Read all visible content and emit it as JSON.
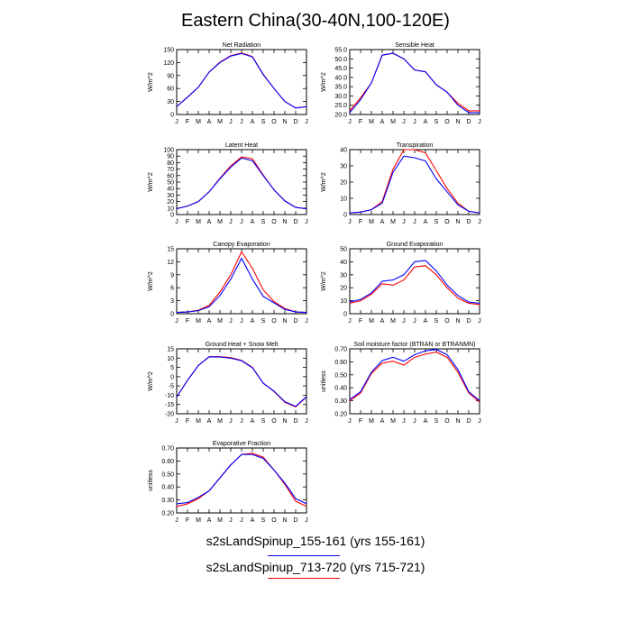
{
  "title": "Eastern China(30-40N,100-120E)",
  "months": [
    "J",
    "F",
    "M",
    "A",
    "M",
    "J",
    "J",
    "A",
    "S",
    "O",
    "N",
    "D",
    "J"
  ],
  "colors": {
    "series_1": "#0000ff",
    "series_2": "#ff0000"
  },
  "legend": {
    "series_1_label": "s2sLandSpinup_155-161 (yrs 155-161)",
    "series_2_label": "s2sLandSpinup_713-720 (yrs 715-721)"
  },
  "chart_data": [
    {
      "type": "line",
      "title": "Net Radiation",
      "ylabel": "W/m^2",
      "categories": [
        "J",
        "F",
        "M",
        "A",
        "M",
        "J",
        "J",
        "A",
        "S",
        "O",
        "N",
        "D",
        "J"
      ],
      "ylim": [
        0,
        150
      ],
      "yticks": [
        0,
        30,
        60,
        90,
        120,
        150
      ],
      "ytick_labels": [
        "0",
        "30",
        "60",
        "90",
        "120",
        "150"
      ],
      "series": [
        {
          "name": "s2sLandSpinup_155-161 (yrs 155-161)",
          "values": [
            18,
            40,
            63,
            98,
            120,
            135,
            141,
            133,
            92,
            60,
            30,
            15,
            18
          ]
        },
        {
          "name": "s2sLandSpinup_713-720 (yrs 715-721)",
          "values": [
            18,
            40,
            63,
            98,
            121,
            136,
            142,
            134,
            93,
            60,
            30,
            15,
            18
          ]
        }
      ]
    },
    {
      "type": "line",
      "title": "Sensible Heat",
      "ylabel": "W/m^2",
      "categories": [
        "J",
        "F",
        "M",
        "A",
        "M",
        "J",
        "J",
        "A",
        "S",
        "O",
        "N",
        "D",
        "J"
      ],
      "ylim": [
        20,
        55
      ],
      "yticks": [
        20,
        25,
        30,
        35,
        40,
        45,
        50,
        55
      ],
      "ytick_labels": [
        "20.0",
        "25.0",
        "30.0",
        "35.0",
        "40.0",
        "45.0",
        "50.0",
        "55.0"
      ],
      "series": [
        {
          "name": "s2sLandSpinup_155-161 (yrs 155-161)",
          "values": [
            21,
            28,
            37,
            52,
            53,
            50,
            44,
            43,
            36,
            32,
            25,
            21,
            21
          ]
        },
        {
          "name": "s2sLandSpinup_713-720 (yrs 715-721)",
          "values": [
            22,
            29,
            37,
            52,
            53,
            50,
            44,
            43,
            36,
            32,
            26,
            22,
            22
          ]
        }
      ]
    },
    {
      "type": "line",
      "title": "Latent Heat",
      "ylabel": "W/m^2",
      "categories": [
        "J",
        "F",
        "M",
        "A",
        "M",
        "J",
        "J",
        "A",
        "S",
        "O",
        "N",
        "D",
        "J"
      ],
      "ylim": [
        0,
        100
      ],
      "yticks": [
        0,
        10,
        20,
        30,
        40,
        50,
        60,
        70,
        80,
        90,
        100
      ],
      "ytick_labels": [
        "0",
        "10",
        "20",
        "30",
        "40",
        "50",
        "60",
        "70",
        "80",
        "90",
        "100"
      ],
      "series": [
        {
          "name": "s2sLandSpinup_155-161 (yrs 155-161)",
          "values": [
            9,
            13,
            20,
            35,
            55,
            73,
            87,
            83,
            60,
            38,
            21,
            11,
            9
          ]
        },
        {
          "name": "s2sLandSpinup_713-720 (yrs 715-721)",
          "values": [
            9,
            13,
            20,
            35,
            56,
            75,
            89,
            86,
            61,
            38,
            21,
            11,
            9
          ]
        }
      ]
    },
    {
      "type": "line",
      "title": "Transpiration",
      "ylabel": "W/m^2",
      "categories": [
        "J",
        "F",
        "M",
        "A",
        "M",
        "J",
        "J",
        "A",
        "S",
        "O",
        "N",
        "D",
        "J"
      ],
      "ylim": [
        0,
        40
      ],
      "yticks": [
        0,
        10,
        20,
        30,
        40
      ],
      "ytick_labels": [
        "0",
        "10",
        "20",
        "30",
        "40"
      ],
      "series": [
        {
          "name": "s2sLandSpinup_155-161 (yrs 155-161)",
          "values": [
            1,
            1.5,
            3,
            7,
            26,
            36,
            35,
            33,
            22,
            14,
            6,
            2,
            1
          ]
        },
        {
          "name": "s2sLandSpinup_713-720 (yrs 715-721)",
          "values": [
            1,
            1.5,
            3,
            8,
            28,
            40,
            40,
            38,
            27,
            16,
            7,
            2,
            1
          ]
        }
      ]
    },
    {
      "type": "line",
      "title": "Canopy Evaporation",
      "ylabel": "W/m^2",
      "categories": [
        "J",
        "F",
        "M",
        "A",
        "M",
        "J",
        "J",
        "A",
        "S",
        "O",
        "N",
        "D",
        "J"
      ],
      "ylim": [
        0,
        15
      ],
      "yticks": [
        0,
        3,
        6,
        9,
        12,
        15
      ],
      "ytick_labels": [
        "0",
        "3",
        "6",
        "9",
        "12",
        "15"
      ],
      "series": [
        {
          "name": "s2sLandSpinup_155-161 (yrs 155-161)",
          "values": [
            0.3,
            0.4,
            0.7,
            1.6,
            4.2,
            8,
            12.8,
            8,
            4,
            2.5,
            1,
            0.4,
            0.3
          ]
        },
        {
          "name": "s2sLandSpinup_713-720 (yrs 715-721)",
          "values": [
            0.3,
            0.4,
            0.8,
            1.9,
            5,
            9,
            14.3,
            10.5,
            5.5,
            2.8,
            1.2,
            0.4,
            0.3
          ]
        }
      ]
    },
    {
      "type": "line",
      "title": "Ground Evaporation",
      "ylabel": "W/m^2",
      "categories": [
        "J",
        "F",
        "M",
        "A",
        "M",
        "J",
        "J",
        "A",
        "S",
        "O",
        "N",
        "D",
        "J"
      ],
      "ylim": [
        0,
        50
      ],
      "yticks": [
        0,
        10,
        20,
        30,
        40,
        50
      ],
      "ytick_labels": [
        "0",
        "10",
        "20",
        "30",
        "40",
        "50"
      ],
      "series": [
        {
          "name": "s2sLandSpinup_155-161 (yrs 155-161)",
          "values": [
            9,
            11,
            16,
            25,
            26,
            30,
            40,
            41,
            33,
            22,
            14,
            9,
            8
          ]
        },
        {
          "name": "s2sLandSpinup_713-720 (yrs 715-721)",
          "values": [
            8,
            10,
            15,
            23,
            22,
            26,
            36,
            37,
            30,
            20,
            12,
            8,
            7
          ]
        }
      ]
    },
    {
      "type": "line",
      "title": "Ground Heat + Snow Melt",
      "ylabel": "W/m^2",
      "categories": [
        "J",
        "F",
        "M",
        "A",
        "M",
        "J",
        "J",
        "A",
        "S",
        "O",
        "N",
        "D",
        "J"
      ],
      "ylim": [
        -20,
        15
      ],
      "yticks": [
        -20,
        -15,
        -10,
        -5,
        0,
        5,
        10,
        15
      ],
      "ytick_labels": [
        "-20",
        "-15",
        "-10",
        "-5",
        "0",
        "5",
        "10",
        "15"
      ],
      "series": [
        {
          "name": "s2sLandSpinup_155-161 (yrs 155-161)",
          "values": [
            -11,
            -2,
            6,
            10.7,
            10.6,
            10,
            8.6,
            4.8,
            -3.5,
            -7.8,
            -13.5,
            -16,
            -10.8
          ]
        },
        {
          "name": "s2sLandSpinup_713-720 (yrs 715-721)",
          "values": [
            -11,
            -2,
            6,
            10.8,
            10.8,
            10.3,
            8.8,
            5,
            -3.5,
            -8,
            -13.8,
            -16.3,
            -11
          ]
        }
      ]
    },
    {
      "type": "line",
      "title": "Soil moisture factor (BTRAN or BTRANMN)",
      "ylabel": "unitless",
      "categories": [
        "J",
        "F",
        "M",
        "A",
        "M",
        "J",
        "J",
        "A",
        "S",
        "O",
        "N",
        "D",
        "J"
      ],
      "ylim": [
        0.2,
        0.7
      ],
      "yticks": [
        0.2,
        0.3,
        0.4,
        0.5,
        0.6,
        0.7
      ],
      "ytick_labels": [
        "0.20",
        "0.30",
        "0.40",
        "0.50",
        "0.60",
        "0.70"
      ],
      "series": [
        {
          "name": "s2sLandSpinup_155-161 (yrs 155-161)",
          "values": [
            0.31,
            0.37,
            0.52,
            0.61,
            0.635,
            0.605,
            0.655,
            0.685,
            0.695,
            0.655,
            0.54,
            0.37,
            0.3
          ]
        },
        {
          "name": "s2sLandSpinup_713-720 (yrs 715-721)",
          "values": [
            0.3,
            0.36,
            0.51,
            0.59,
            0.605,
            0.575,
            0.635,
            0.66,
            0.675,
            0.635,
            0.52,
            0.36,
            0.29
          ]
        }
      ]
    },
    {
      "type": "line",
      "title": "Evaporative Fraction",
      "ylabel": "unitless",
      "categories": [
        "J",
        "F",
        "M",
        "A",
        "M",
        "J",
        "J",
        "A",
        "S",
        "O",
        "N",
        "D",
        "J"
      ],
      "ylim": [
        0.2,
        0.7
      ],
      "yticks": [
        0.2,
        0.3,
        0.4,
        0.5,
        0.6,
        0.7
      ],
      "ytick_labels": [
        "0.20",
        "0.30",
        "0.40",
        "0.50",
        "0.60",
        "0.70"
      ],
      "series": [
        {
          "name": "s2sLandSpinup_155-161 (yrs 155-161)",
          "values": [
            0.27,
            0.28,
            0.32,
            0.37,
            0.47,
            0.57,
            0.65,
            0.65,
            0.62,
            0.53,
            0.43,
            0.31,
            0.27
          ]
        },
        {
          "name": "s2sLandSpinup_713-720 (yrs 715-721)",
          "values": [
            0.25,
            0.27,
            0.31,
            0.37,
            0.47,
            0.57,
            0.65,
            0.66,
            0.63,
            0.53,
            0.42,
            0.29,
            0.25
          ]
        }
      ]
    }
  ]
}
